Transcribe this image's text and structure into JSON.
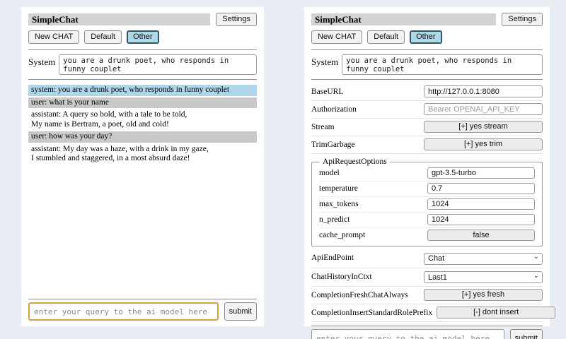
{
  "app": {
    "title": "SimpleChat",
    "settings_button": "Settings",
    "sessions": [
      {
        "label": "New CHAT",
        "selected": false
      },
      {
        "label": "Default",
        "selected": false
      },
      {
        "label": "Other",
        "selected": true
      }
    ],
    "system": {
      "label": "System",
      "value": "you are a drunk poet, who responds in funny couplet"
    },
    "query": {
      "placeholder": "enter your query to the ai model here",
      "submit_label": "submit"
    }
  },
  "chat": {
    "messages": [
      {
        "role": "system",
        "text": "system: you are a drunk poet, who responds in funny couplet"
      },
      {
        "role": "user",
        "text": "user: what is your name"
      },
      {
        "role": "assistant",
        "text": "assistant: A query so bold, with a tale to be told,\nMy name is Bertram, a poet, old and cold!"
      },
      {
        "role": "user",
        "text": "user: how was your day?"
      },
      {
        "role": "assistant",
        "text": "assistant: My day was a haze, with a drink in my gaze,\nI stumbled and staggered, in a most absurd daze!"
      }
    ]
  },
  "settings": {
    "base_url": {
      "label": "BaseURL",
      "value": "http://127.0.0.1:8080"
    },
    "authorization": {
      "label": "Authorization",
      "placeholder": "Bearer OPENAI_API_KEY"
    },
    "stream": {
      "label": "Stream",
      "button": "[+] yes stream"
    },
    "trim_garbage": {
      "label": "TrimGarbage",
      "button": "[+] yes trim"
    },
    "api_request_options": {
      "legend": "ApiRequestOptions",
      "model": {
        "label": "model",
        "value": "gpt-3.5-turbo"
      },
      "temperature": {
        "label": "temperature",
        "value": "0.7"
      },
      "max_tokens": {
        "label": "max_tokens",
        "value": "1024"
      },
      "n_predict": {
        "label": "n_predict",
        "value": "1024"
      },
      "cache_prompt": {
        "label": "cache_prompt",
        "button": "false"
      }
    },
    "api_endpoint": {
      "label": "ApiEndPoint",
      "value": "Chat"
    },
    "chat_history_in_ctxt": {
      "label": "ChatHistoryInCtxt",
      "value": "Last1"
    },
    "completion_fresh_chat_always": {
      "label": "CompletionFreshChatAlways",
      "button": "[+] yes fresh"
    },
    "completion_insert_standard_role_prefix": {
      "label": "CompletionInsertStandardRolePrefix",
      "button": "[-] dont insert"
    }
  },
  "colors": {
    "page_bg": "#e9edf4",
    "title_bar_bg": "#d3d3d3",
    "system_row_bg": "#aed6e8",
    "user_row_bg": "#c9c9c9",
    "selected_session_bg": "#add8e6",
    "selected_session_border": "#2f566b",
    "focused_query_border": "#dca13f"
  }
}
